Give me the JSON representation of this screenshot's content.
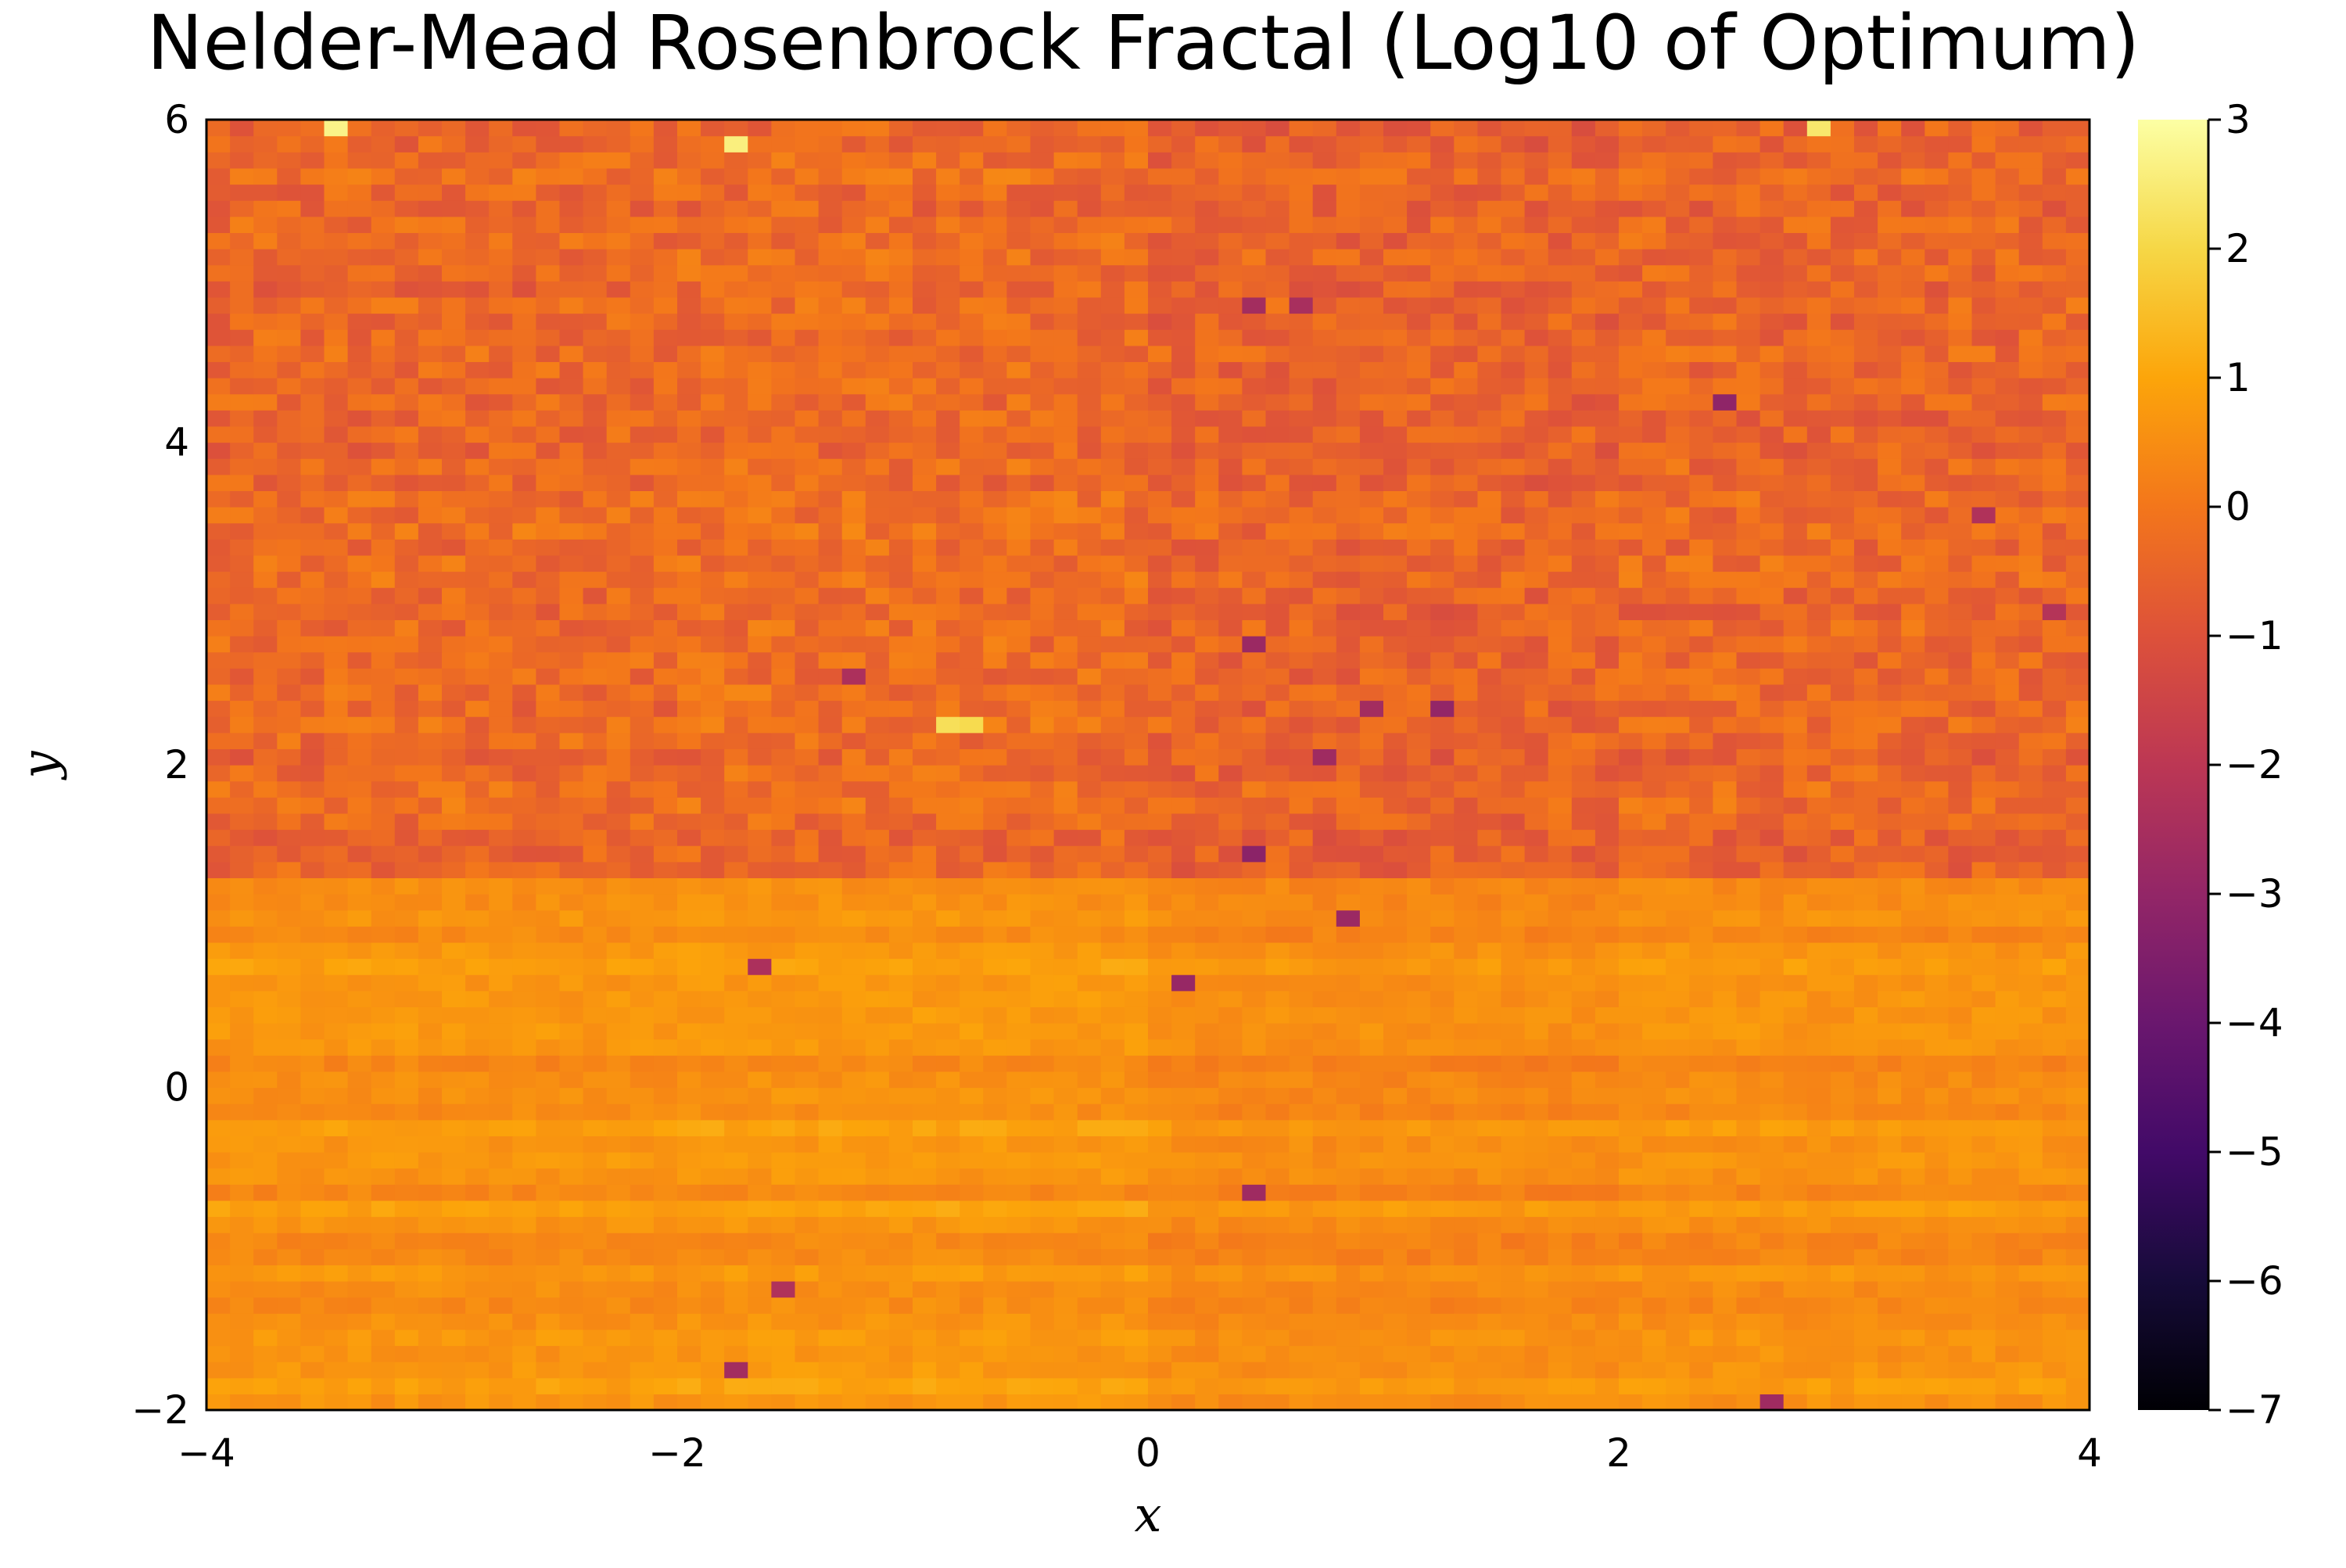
{
  "chart_data": {
    "type": "heatmap",
    "title": "Nelder-Mead Rosenbrock Fractal (Log10 of Optimum)",
    "xlabel": "x",
    "ylabel": "y",
    "xlim": [
      -4,
      4
    ],
    "ylim": [
      -2,
      6
    ],
    "x_ticks": [
      -4,
      -2,
      0,
      2,
      4
    ],
    "x_tick_labels": [
      "−4",
      "−2",
      "0",
      "2",
      "4"
    ],
    "y_ticks": [
      -2,
      0,
      2,
      4,
      6
    ],
    "y_tick_labels": [
      "−2",
      "0",
      "2",
      "4",
      "6"
    ],
    "grid": {
      "nx": 80,
      "ny": 80
    },
    "colorbar": {
      "colormap": "inferno",
      "range": [
        -7,
        3
      ],
      "ticks": [
        3,
        2,
        1,
        0,
        -1,
        -2,
        -3,
        -4,
        -5,
        -6,
        -7
      ],
      "tick_labels": [
        "3",
        "2",
        "1",
        "0",
        "−1",
        "−2",
        "−3",
        "−4",
        "−5",
        "−6",
        "−7"
      ]
    },
    "regions": [
      {
        "y_range": [
          1.3,
          6
        ],
        "typical_log10": -0.4,
        "spread": 0.55,
        "description_note": "noisy orange/red band"
      },
      {
        "y_range": [
          -2,
          1.3
        ],
        "typical_log10": 0.55,
        "spread": 0.35,
        "description_note": "horizontal striped bright band"
      }
    ],
    "notable_cells": [
      {
        "x": -3.45,
        "y": 5.95,
        "log10": 2.7
      },
      {
        "x": -1.75,
        "y": 5.85,
        "log10": 2.6
      },
      {
        "x": 2.85,
        "y": 5.95,
        "log10": 2.4
      },
      {
        "x": -0.85,
        "y": 2.2,
        "log10": 2.2
      },
      {
        "x": -0.75,
        "y": 2.2,
        "log10": 2.1
      },
      {
        "x": 0.45,
        "y": 4.8,
        "log10": -2.6
      },
      {
        "x": 0.65,
        "y": 4.8,
        "log10": -2.5
      },
      {
        "x": 2.45,
        "y": 4.25,
        "log10": -3.1
      },
      {
        "x": 0.45,
        "y": 1.4,
        "log10": -3.2
      },
      {
        "x": 0.75,
        "y": 2.0,
        "log10": -2.7
      },
      {
        "x": 0.85,
        "y": 1.0,
        "log10": -2.8
      },
      {
        "x": 0.15,
        "y": 0.6,
        "log10": -2.9
      },
      {
        "x": 0.95,
        "y": 2.35,
        "log10": -2.6
      },
      {
        "x": 1.25,
        "y": 2.35,
        "log10": -3.0
      },
      {
        "x": 0.45,
        "y": 2.7,
        "log10": -2.8
      },
      {
        "x": 0.45,
        "y": -0.65,
        "log10": -2.7
      },
      {
        "x": -1.65,
        "y": 0.75,
        "log10": -2.4
      },
      {
        "x": -1.75,
        "y": -1.75,
        "log10": -2.6
      },
      {
        "x": -1.55,
        "y": -1.3,
        "log10": -2.3
      },
      {
        "x": -1.25,
        "y": 2.5,
        "log10": -2.4
      },
      {
        "x": 2.65,
        "y": -1.95,
        "log10": -2.7
      },
      {
        "x": 3.85,
        "y": 2.95,
        "log10": -2.2
      },
      {
        "x": 3.55,
        "y": 3.55,
        "log10": -2.3
      }
    ]
  }
}
